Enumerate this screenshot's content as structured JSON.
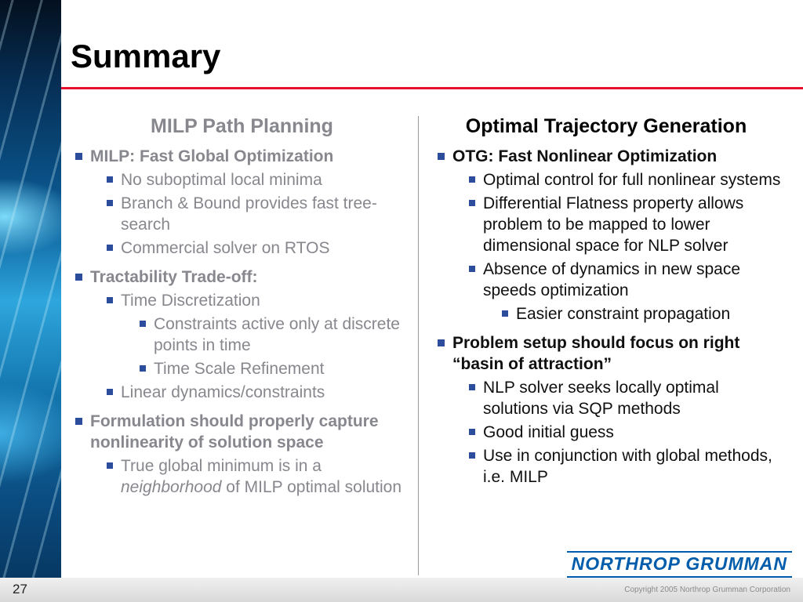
{
  "slide": {
    "title": "Summary"
  },
  "colors": {
    "accent_red": "#e8112d",
    "bullet_blue": "#2c4c9c",
    "gray_text": "#87878e",
    "logo_blue": "#005dab"
  },
  "icons": {
    "bullet": "square-bullet-icon"
  },
  "left_column": {
    "heading": "MILP Path Planning",
    "items": [
      {
        "level": 1,
        "bold": true,
        "runs": [
          {
            "t": "MILP: Fast Global Optimization"
          }
        ]
      },
      {
        "level": 2,
        "bold": false,
        "runs": [
          {
            "t": "No suboptimal local minima"
          }
        ]
      },
      {
        "level": 2,
        "bold": false,
        "runs": [
          {
            "t": "Branch & Bound provides fast tree-search"
          }
        ]
      },
      {
        "level": 2,
        "bold": false,
        "runs": [
          {
            "t": "Commercial solver on RTOS"
          }
        ]
      },
      {
        "level": 1,
        "bold": true,
        "runs": [
          {
            "t": "Tractability Trade-off:"
          }
        ]
      },
      {
        "level": 2,
        "bold": false,
        "runs": [
          {
            "t": "Time Discretization"
          }
        ]
      },
      {
        "level": 3,
        "bold": false,
        "runs": [
          {
            "t": "Constraints active only at discrete points in time"
          }
        ]
      },
      {
        "level": 3,
        "bold": false,
        "runs": [
          {
            "t": "Time Scale Refinement"
          }
        ]
      },
      {
        "level": 2,
        "bold": false,
        "runs": [
          {
            "t": "Linear dynamics/constraints"
          }
        ]
      },
      {
        "level": 1,
        "bold": true,
        "runs": [
          {
            "t": "Formulation should properly capture nonlinearity of solution space"
          }
        ]
      },
      {
        "level": 2,
        "bold": false,
        "runs": [
          {
            "t": "True global minimum is in a "
          },
          {
            "t": "neighborhood",
            "italic": true
          },
          {
            "t": " of MILP optimal solution"
          }
        ]
      }
    ]
  },
  "right_column": {
    "heading": "Optimal Trajectory Generation",
    "items": [
      {
        "level": 1,
        "bold": true,
        "runs": [
          {
            "t": "OTG: Fast Nonlinear Optimization"
          }
        ]
      },
      {
        "level": 2,
        "bold": false,
        "runs": [
          {
            "t": "Optimal control for full nonlinear systems"
          }
        ]
      },
      {
        "level": 2,
        "bold": false,
        "runs": [
          {
            "t": "Differential Flatness property allows problem to be mapped to lower dimensional space for NLP solver"
          }
        ]
      },
      {
        "level": 2,
        "bold": false,
        "runs": [
          {
            "t": "Absence of dynamics in new space speeds optimization"
          }
        ]
      },
      {
        "level": 3,
        "bold": false,
        "runs": [
          {
            "t": "Easier constraint propagation"
          }
        ]
      },
      {
        "level": 1,
        "bold": true,
        "runs": [
          {
            "t": "Problem setup should focus on right “basin of attraction”"
          }
        ]
      },
      {
        "level": 2,
        "bold": false,
        "runs": [
          {
            "t": "NLP solver seeks locally optimal solutions via SQP methods"
          }
        ]
      },
      {
        "level": 2,
        "bold": false,
        "runs": [
          {
            "t": "Good initial guess"
          }
        ]
      },
      {
        "level": 2,
        "bold": false,
        "runs": [
          {
            "t": "Use in conjunction with global methods, i.e. MILP"
          }
        ]
      }
    ]
  },
  "footer": {
    "page_number": "27",
    "logo_text": "NORTHROP GRUMMAN",
    "copyright": "Copyright 2005 Northrop Grumman Corporation"
  }
}
